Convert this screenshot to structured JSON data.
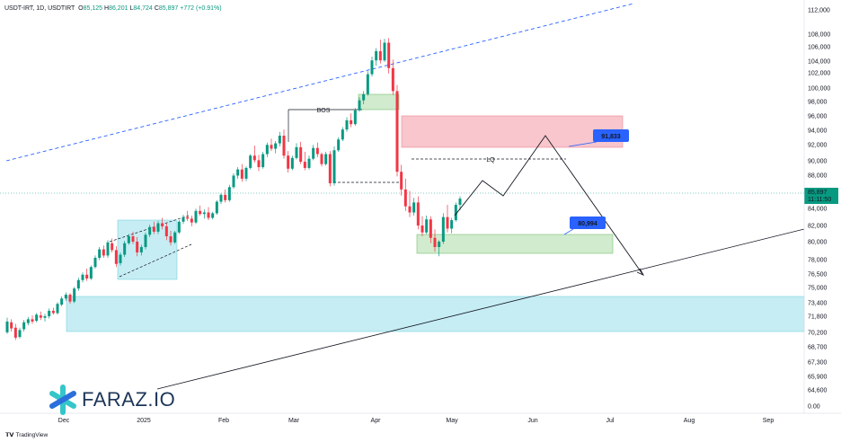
{
  "header": {
    "symbol": "USDT-IRT, 1D, USDTIRT",
    "ohlc": [
      {
        "k": "O",
        "v": "85,125"
      },
      {
        "k": "H",
        "v": "86,201"
      },
      {
        "k": "L",
        "v": "84,724"
      },
      {
        "k": "C",
        "v": "85,897"
      }
    ],
    "change": "+772 (+0.91%)"
  },
  "brand": {
    "logo_text": "FARAZ.IO",
    "footer": "TradingView",
    "footer_icon": "tradingview-icon"
  },
  "colors": {
    "up": "#089981",
    "down": "#f23645",
    "line": "#131722",
    "supply_zone": "#f7b8c0",
    "demand_zone": "#c9e8c6",
    "cyan_zone": "#b3e7f0",
    "label_bg": "#2962ff",
    "channel": "#2962ff"
  },
  "chart_data": {
    "type": "candlestick",
    "title": "",
    "xlabel": "",
    "ylabel": "",
    "y_ticks": [
      "112,000",
      "108,000",
      "106,000",
      "104,000",
      "102,000",
      "100,000",
      "98,000",
      "96,000",
      "94,000",
      "92,000",
      "90,000",
      "88,000",
      "84,000",
      "82,000",
      "80,000",
      "78,000",
      "76,500",
      "75,000",
      "73,400",
      "71,800",
      "70,200",
      "68,700",
      "67,300",
      "65,900",
      "64,600",
      "0.00"
    ],
    "x_ticks": [
      "Dec",
      "2025",
      "Feb",
      "Mar",
      "Apr",
      "May",
      "Jun",
      "Jul",
      "Aug",
      "Sep"
    ],
    "current_price": {
      "price": "85,897",
      "countdown": "11:11:50"
    },
    "annotations": {
      "bos": "BOS",
      "lq": "LQ",
      "target_high": "91,833",
      "target_low": "80,994"
    },
    "candles_ohlc": [
      [
        68200,
        70100,
        68000,
        69600
      ],
      [
        69500,
        69900,
        68300,
        68700
      ],
      [
        68800,
        69300,
        67200,
        67500
      ],
      [
        67600,
        68800,
        67400,
        68500
      ],
      [
        68600,
        69800,
        68300,
        69500
      ],
      [
        69400,
        70200,
        69100,
        69900
      ],
      [
        69900,
        70400,
        69300,
        69600
      ],
      [
        69700,
        70700,
        69500,
        70500
      ],
      [
        70400,
        70900,
        69800,
        70100
      ],
      [
        70100,
        70600,
        69600,
        70300
      ],
      [
        70300,
        71300,
        70000,
        71000
      ],
      [
        71000,
        71400,
        70500,
        70700
      ],
      [
        70700,
        72100,
        70500,
        71900
      ],
      [
        71800,
        72900,
        71600,
        72600
      ],
      [
        72600,
        73400,
        72300,
        73100
      ],
      [
        73100,
        73300,
        71900,
        72200
      ],
      [
        72200,
        74100,
        72000,
        73900
      ],
      [
        73900,
        75300,
        73600,
        75000
      ],
      [
        75000,
        76000,
        74700,
        75700
      ],
      [
        75700,
        76500,
        74900,
        75200
      ],
      [
        75200,
        76900,
        75000,
        76700
      ],
      [
        76700,
        78200,
        76500,
        77900
      ],
      [
        77900,
        79300,
        77600,
        79000
      ],
      [
        79000,
        79500,
        77900,
        78200
      ],
      [
        78200,
        80200,
        77900,
        79900
      ],
      [
        79800,
        80400,
        78600,
        78900
      ],
      [
        78900,
        79400,
        76700,
        77100
      ],
      [
        77200,
        78600,
        76900,
        78300
      ],
      [
        78300,
        80100,
        78000,
        79800
      ],
      [
        79800,
        81000,
        79600,
        80700
      ],
      [
        80700,
        81300,
        79700,
        80000
      ],
      [
        80000,
        80600,
        78100,
        78600
      ],
      [
        78600,
        79600,
        78200,
        79300
      ],
      [
        79300,
        81200,
        79000,
        80900
      ],
      [
        80900,
        82200,
        80600,
        81900
      ],
      [
        81900,
        82600,
        81000,
        81300
      ],
      [
        81300,
        82700,
        81000,
        82400
      ],
      [
        82400,
        83100,
        81600,
        82000
      ],
      [
        82000,
        82400,
        80200,
        80700
      ],
      [
        80700,
        81400,
        79500,
        79900
      ],
      [
        79900,
        81400,
        79700,
        81200
      ],
      [
        81200,
        82800,
        81000,
        82600
      ],
      [
        82600,
        83500,
        82300,
        83200
      ],
      [
        83200,
        84000,
        82700,
        83000
      ],
      [
        83000,
        83400,
        82000,
        82500
      ],
      [
        82500,
        84300,
        82300,
        84000
      ],
      [
        84000,
        84700,
        83400,
        83600
      ],
      [
        83600,
        84200,
        83000,
        83800
      ],
      [
        83800,
        84500,
        82800,
        83100
      ],
      [
        83100,
        83900,
        82900,
        83700
      ],
      [
        83700,
        85400,
        83500,
        85200
      ],
      [
        85200,
        86300,
        84900,
        86100
      ],
      [
        86100,
        86800,
        85100,
        85400
      ],
      [
        85400,
        87400,
        85200,
        87100
      ],
      [
        87100,
        88900,
        86900,
        88600
      ],
      [
        88600,
        89700,
        88200,
        89400
      ],
      [
        89400,
        90100,
        87800,
        88200
      ],
      [
        88200,
        89800,
        87900,
        89600
      ],
      [
        89600,
        91400,
        89400,
        91200
      ],
      [
        91200,
        92500,
        90300,
        90600
      ],
      [
        90600,
        91300,
        89200,
        89700
      ],
      [
        89700,
        91700,
        89500,
        91400
      ],
      [
        91400,
        92900,
        91000,
        92600
      ],
      [
        92600,
        93400,
        91800,
        92100
      ],
      [
        92100,
        93100,
        91500,
        92800
      ],
      [
        92800,
        94300,
        92400,
        93800
      ],
      [
        93800,
        94600,
        90800,
        91200
      ],
      [
        91200,
        91800,
        89000,
        89500
      ],
      [
        89500,
        91200,
        89300,
        90900
      ],
      [
        90900,
        92800,
        90700,
        92300
      ],
      [
        92300,
        93000,
        90100,
        90400
      ],
      [
        90400,
        91700,
        89300,
        89600
      ],
      [
        89600,
        91200,
        89400,
        90800
      ],
      [
        90800,
        92600,
        90600,
        92200
      ],
      [
        92200,
        92900,
        91000,
        91400
      ],
      [
        91400,
        91600,
        89800,
        90100
      ],
      [
        90100,
        91700,
        89900,
        91400
      ],
      [
        91400,
        91800,
        87200,
        87600
      ],
      [
        87600,
        92400,
        87300,
        91900
      ],
      [
        91900,
        93600,
        91700,
        93300
      ],
      [
        93300,
        94900,
        93100,
        94600
      ],
      [
        94600,
        96200,
        94300,
        95800
      ],
      [
        95800,
        96700,
        94900,
        95300
      ],
      [
        95300,
        97400,
        95100,
        97100
      ],
      [
        97100,
        98800,
        96900,
        98400
      ],
      [
        98400,
        99600,
        97900,
        99200
      ],
      [
        99200,
        102200,
        99000,
        101800
      ],
      [
        101800,
        104100,
        101500,
        103600
      ],
      [
        103600,
        105200,
        102900,
        104800
      ],
      [
        104800,
        106300,
        103200,
        103600
      ],
      [
        103600,
        106400,
        103400,
        105900
      ],
      [
        105900,
        106500,
        101900,
        102600
      ],
      [
        102600,
        103700,
        99100,
        99600
      ],
      [
        99600,
        100400,
        88500,
        89100
      ],
      [
        89100,
        90000,
        86000,
        86800
      ],
      [
        86800,
        88200,
        84000,
        84600
      ],
      [
        84600,
        86600,
        83200,
        83800
      ],
      [
        83800,
        85700,
        83400,
        85100
      ],
      [
        85100,
        85900,
        81600,
        82100
      ],
      [
        82100,
        83300,
        80700,
        81200
      ],
      [
        81200,
        83400,
        81000,
        82900
      ],
      [
        82900,
        83300,
        79800,
        80500
      ],
      [
        80500,
        81600,
        78700,
        79300
      ],
      [
        79300,
        80200,
        78100,
        80000
      ],
      [
        80000,
        83700,
        79700,
        83200
      ],
      [
        83200,
        84800,
        81200,
        81700
      ],
      [
        81700,
        83100,
        81100,
        82800
      ],
      [
        82800,
        85100,
        82600,
        84800
      ],
      [
        84800,
        85900,
        84100,
        85600
      ]
    ],
    "projection_path": [
      [
        85600,
        0
      ],
      [
        87400,
        0
      ],
      [
        85000,
        0
      ],
      [
        93000,
        0
      ],
      [
        76000,
        0
      ]
    ]
  }
}
